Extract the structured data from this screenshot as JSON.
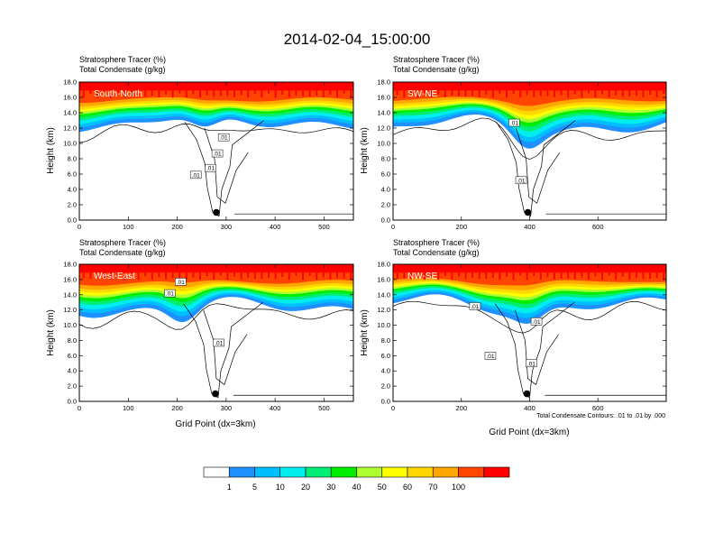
{
  "title": "2014-02-04_15:00:00",
  "note": "Total Condensate Contours: .01 to .01 by .000",
  "xlabel": "Grid Point (dx=3km)",
  "ylabel": "Height (km)",
  "subtitle_line1": "Stratosphere Tracer   (%)",
  "subtitle_line2": "Total Condensate   (g/kg)",
  "contour_label": ".01",
  "colors": {
    "white": "#ffffff",
    "c1": "#1e90ff",
    "c5": "#00bfff",
    "c10": "#00eeee",
    "c20": "#00ee76",
    "c30": "#00ee00",
    "c40": "#adff2f",
    "c50": "#ffff00",
    "c60": "#ffd700",
    "c70": "#ffa500",
    "c100": "#ff4500",
    "cmax": "#ff0000"
  },
  "colorbar": {
    "levels": [
      "1",
      "5",
      "10",
      "20",
      "30",
      "40",
      "50",
      "60",
      "70",
      "100"
    ]
  },
  "chart_data": [
    {
      "type": "heatmap",
      "panel_label": "South-North",
      "xlim": [
        0,
        560
      ],
      "ylim": [
        0,
        18
      ],
      "xticks": [
        "0",
        "100",
        "200",
        "300",
        "400",
        "500"
      ],
      "yticks": [
        "0.0",
        "2.0",
        "4.0",
        "6.0",
        "8.0",
        "10.0",
        "12.0",
        "14.0",
        "16.0",
        "18.0"
      ],
      "marker_x": 280,
      "marker_y": 1.0,
      "contour_labels_at": [
        [
          238,
          5.9
        ],
        [
          268,
          6.8
        ],
        [
          295,
          10.8
        ],
        [
          282,
          8.7
        ]
      ]
    },
    {
      "type": "heatmap",
      "panel_label": "SW-NE",
      "xlim": [
        0,
        800
      ],
      "ylim": [
        0,
        18
      ],
      "xticks": [
        "0",
        "200",
        "400",
        "600"
      ],
      "yticks": [
        "0.0",
        "2.0",
        "4.0",
        "6.0",
        "8.0",
        "10.0",
        "12.0",
        "14.0",
        "16.0",
        "18.0"
      ],
      "marker_x": 395,
      "marker_y": 1.0,
      "contour_labels_at": [
        [
          375,
          5.2
        ],
        [
          355,
          12.7
        ]
      ]
    },
    {
      "type": "heatmap",
      "panel_label": "West-East",
      "xlim": [
        0,
        560
      ],
      "ylim": [
        0,
        18
      ],
      "xticks": [
        "0",
        "100",
        "200",
        "300",
        "400",
        "500"
      ],
      "yticks": [
        "0.0",
        "2.0",
        "4.0",
        "6.0",
        "8.0",
        "10.0",
        "12.0",
        "14.0",
        "16.0",
        "18.0"
      ],
      "marker_x": 278,
      "marker_y": 1.0,
      "contour_labels_at": [
        [
          185,
          14.2
        ],
        [
          207,
          15.7
        ],
        [
          285,
          7.7
        ]
      ]
    },
    {
      "type": "heatmap",
      "panel_label": "NW-SE",
      "xlim": [
        0,
        800
      ],
      "ylim": [
        0,
        18
      ],
      "xticks": [
        "0",
        "200",
        "400",
        "600"
      ],
      "yticks": [
        "0.0",
        "2.0",
        "4.0",
        "6.0",
        "8.0",
        "10.0",
        "12.0",
        "14.0",
        "16.0",
        "18.0"
      ],
      "marker_x": 392,
      "marker_y": 1.0,
      "contour_labels_at": [
        [
          240,
          12.5
        ],
        [
          420,
          10.5
        ],
        [
          405,
          5.0
        ],
        [
          285,
          6.0
        ]
      ]
    }
  ]
}
